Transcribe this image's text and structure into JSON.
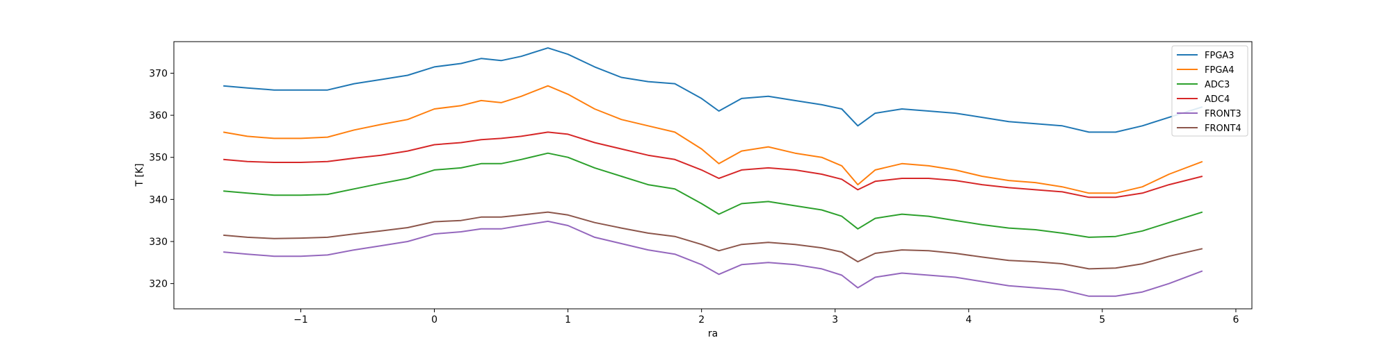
{
  "chart_data": {
    "type": "line",
    "title": "",
    "xlabel": "ra",
    "ylabel": "T [K]",
    "xlim": [
      -1.95,
      6.12
    ],
    "ylim": [
      314,
      377.5
    ],
    "xticks": [
      -1,
      0,
      1,
      2,
      3,
      4,
      5,
      6
    ],
    "yticks": [
      320,
      330,
      340,
      350,
      360,
      370
    ],
    "grid": false,
    "legend_position": "top-right",
    "x": [
      -1.58,
      -1.4,
      -1.2,
      -1.0,
      -0.8,
      -0.6,
      -0.4,
      -0.2,
      0.0,
      0.2,
      0.35,
      0.5,
      0.65,
      0.85,
      1.0,
      1.2,
      1.4,
      1.6,
      1.8,
      2.0,
      2.13,
      2.3,
      2.5,
      2.7,
      2.9,
      3.05,
      3.17,
      3.3,
      3.5,
      3.7,
      3.9,
      4.1,
      4.3,
      4.5,
      4.7,
      4.9,
      5.1,
      5.3,
      5.5,
      5.75
    ],
    "series": [
      {
        "name": "FPGA3",
        "color": "#1f77b4",
        "values": [
          367,
          366.5,
          366,
          366,
          366,
          367.5,
          368.5,
          369.5,
          371.5,
          372.3,
          373.5,
          373,
          374,
          376,
          374.5,
          371.5,
          369,
          368,
          367.5,
          364,
          361,
          364,
          364.5,
          363.5,
          362.5,
          361.5,
          357.5,
          360.5,
          361.5,
          361,
          360.5,
          359.5,
          358.5,
          358,
          357.5,
          356,
          356,
          357.5,
          359.5,
          362
        ]
      },
      {
        "name": "FPGA4",
        "color": "#ff7f0e",
        "values": [
          356,
          355,
          354.5,
          354.5,
          354.8,
          356.5,
          357.8,
          359,
          361.5,
          362.3,
          363.5,
          363,
          364.5,
          367,
          365,
          361.5,
          359,
          357.5,
          356,
          352,
          348.5,
          351.5,
          352.5,
          351,
          350,
          348,
          343.5,
          347,
          348.5,
          348,
          347,
          345.5,
          344.5,
          344,
          343,
          341.5,
          341.5,
          343,
          346,
          349
        ]
      },
      {
        "name": "ADC3",
        "color": "#2ca02c",
        "values": [
          342,
          341.5,
          341,
          341,
          341.2,
          342.5,
          343.8,
          345,
          347,
          347.5,
          348.5,
          348.5,
          349.5,
          351,
          350,
          347.5,
          345.5,
          343.5,
          342.5,
          339,
          336.5,
          339,
          339.5,
          338.5,
          337.5,
          336,
          333,
          335.5,
          336.5,
          336,
          335,
          334,
          333.2,
          332.8,
          332,
          331,
          331.2,
          332.5,
          334.5,
          337
        ]
      },
      {
        "name": "ADC4",
        "color": "#d62728",
        "values": [
          349.5,
          349,
          348.8,
          348.8,
          349,
          349.8,
          350.5,
          351.5,
          353,
          353.5,
          354.2,
          354.5,
          355,
          356,
          355.5,
          353.5,
          352,
          350.5,
          349.5,
          347,
          345,
          347,
          347.5,
          347,
          346,
          344.8,
          342.3,
          344.3,
          345,
          345,
          344.5,
          343.5,
          342.8,
          342.3,
          341.8,
          340.5,
          340.5,
          341.5,
          343.5,
          345.5
        ]
      },
      {
        "name": "FRONT3",
        "color": "#9467bd",
        "values": [
          327.5,
          327,
          326.5,
          326.5,
          326.8,
          328,
          329,
          330,
          331.8,
          332.3,
          333,
          333,
          333.8,
          334.8,
          333.8,
          331,
          329.5,
          328,
          327,
          324.5,
          322.2,
          324.5,
          325,
          324.5,
          323.5,
          322,
          319,
          321.5,
          322.5,
          322,
          321.5,
          320.5,
          319.5,
          319,
          318.5,
          317,
          317,
          318,
          320,
          323
        ]
      },
      {
        "name": "FRONT4",
        "color": "#8c564b",
        "values": [
          331.5,
          331,
          330.7,
          330.8,
          331,
          331.8,
          332.5,
          333.3,
          334.7,
          335,
          335.8,
          335.8,
          336.3,
          337,
          336.3,
          334.5,
          333.2,
          332,
          331.2,
          329.3,
          327.8,
          329.3,
          329.8,
          329.3,
          328.5,
          327.5,
          325.2,
          327.2,
          328,
          327.8,
          327.2,
          326.3,
          325.5,
          325.2,
          324.7,
          323.5,
          323.7,
          324.7,
          326.5,
          328.3
        ]
      }
    ]
  }
}
